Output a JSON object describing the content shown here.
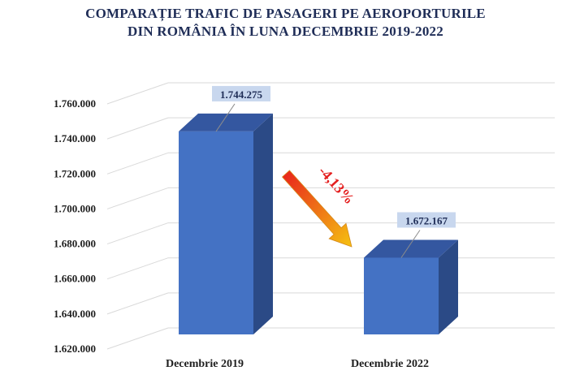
{
  "chart_data": {
    "type": "bar",
    "title_lines": [
      "COMPARAȚIE TRAFIC DE PASAGERI PE AEROPORTURILE",
      "DIN ROMÂNIA ÎN LUNA DECEMBRIE 2019-2022"
    ],
    "categories": [
      "Decembrie 2019",
      "Decembrie 2022"
    ],
    "values": [
      1744275,
      1672167
    ],
    "data_labels": [
      "1.744.275",
      "1.672.167"
    ],
    "ylim": [
      1620000,
      1760000
    ],
    "y_ticks": [
      1620000,
      1640000,
      1660000,
      1680000,
      1700000,
      1720000,
      1740000,
      1760000
    ],
    "y_tick_labels": [
      "1.620.000",
      "1.640.000",
      "1.660.000",
      "1.680.000",
      "1.700.000",
      "1.720.000",
      "1.740.000",
      "1.760.000"
    ],
    "annotation": "-4,13%",
    "grid": true,
    "style": "3d-column",
    "colors": {
      "bar_front": "#4472c4",
      "bar_side": "#2b4a86",
      "bar_top": "#3457a0",
      "label_bg": "#c8d7ee",
      "arrow_start": "#e8201c",
      "arrow_end": "#f5c211",
      "annotation": "#e41f1f",
      "title": "#1f2d57"
    }
  }
}
